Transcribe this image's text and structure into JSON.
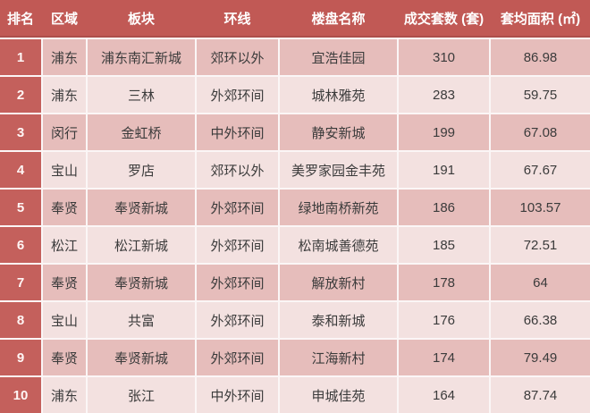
{
  "chart_data": {
    "type": "table",
    "title": "",
    "columns": [
      "排名",
      "区域",
      "板块",
      "环线",
      "楼盘名称",
      "成交套数 (套)",
      "套均面积 (㎡)"
    ],
    "rows": [
      [
        "1",
        "浦东",
        "浦东南汇新城",
        "郊环以外",
        "宜浩佳园",
        "310",
        "86.98"
      ],
      [
        "2",
        "浦东",
        "三林",
        "外郊环间",
        "城林雅苑",
        "283",
        "59.75"
      ],
      [
        "3",
        "闵行",
        "金虹桥",
        "中外环间",
        "静安新城",
        "199",
        "67.08"
      ],
      [
        "4",
        "宝山",
        "罗店",
        "郊环以外",
        "美罗家园金丰苑",
        "191",
        "67.67"
      ],
      [
        "5",
        "奉贤",
        "奉贤新城",
        "外郊环间",
        "绿地南桥新苑",
        "186",
        "103.57"
      ],
      [
        "6",
        "松江",
        "松江新城",
        "外郊环间",
        "松南城善德苑",
        "185",
        "72.51"
      ],
      [
        "7",
        "奉贤",
        "奉贤新城",
        "外郊环间",
        "解放新村",
        "178",
        "64"
      ],
      [
        "8",
        "宝山",
        "共富",
        "外郊环间",
        "泰和新城",
        "176",
        "66.38"
      ],
      [
        "9",
        "奉贤",
        "奉贤新城",
        "外郊环间",
        "江海新村",
        "174",
        "79.49"
      ],
      [
        "10",
        "浦东",
        "张江",
        "中外环间",
        "申城佳苑",
        "164",
        "87.74"
      ]
    ]
  },
  "colors": {
    "header_bg": "#C15955",
    "rank_column_bg": "#C4605C",
    "row_odd_bg": "#E6BDBB",
    "row_even_bg": "#F3E1E0",
    "gridline": "#FBF6F6",
    "header_text": "#FFFFFF",
    "body_text": "#3B3B3B"
  }
}
